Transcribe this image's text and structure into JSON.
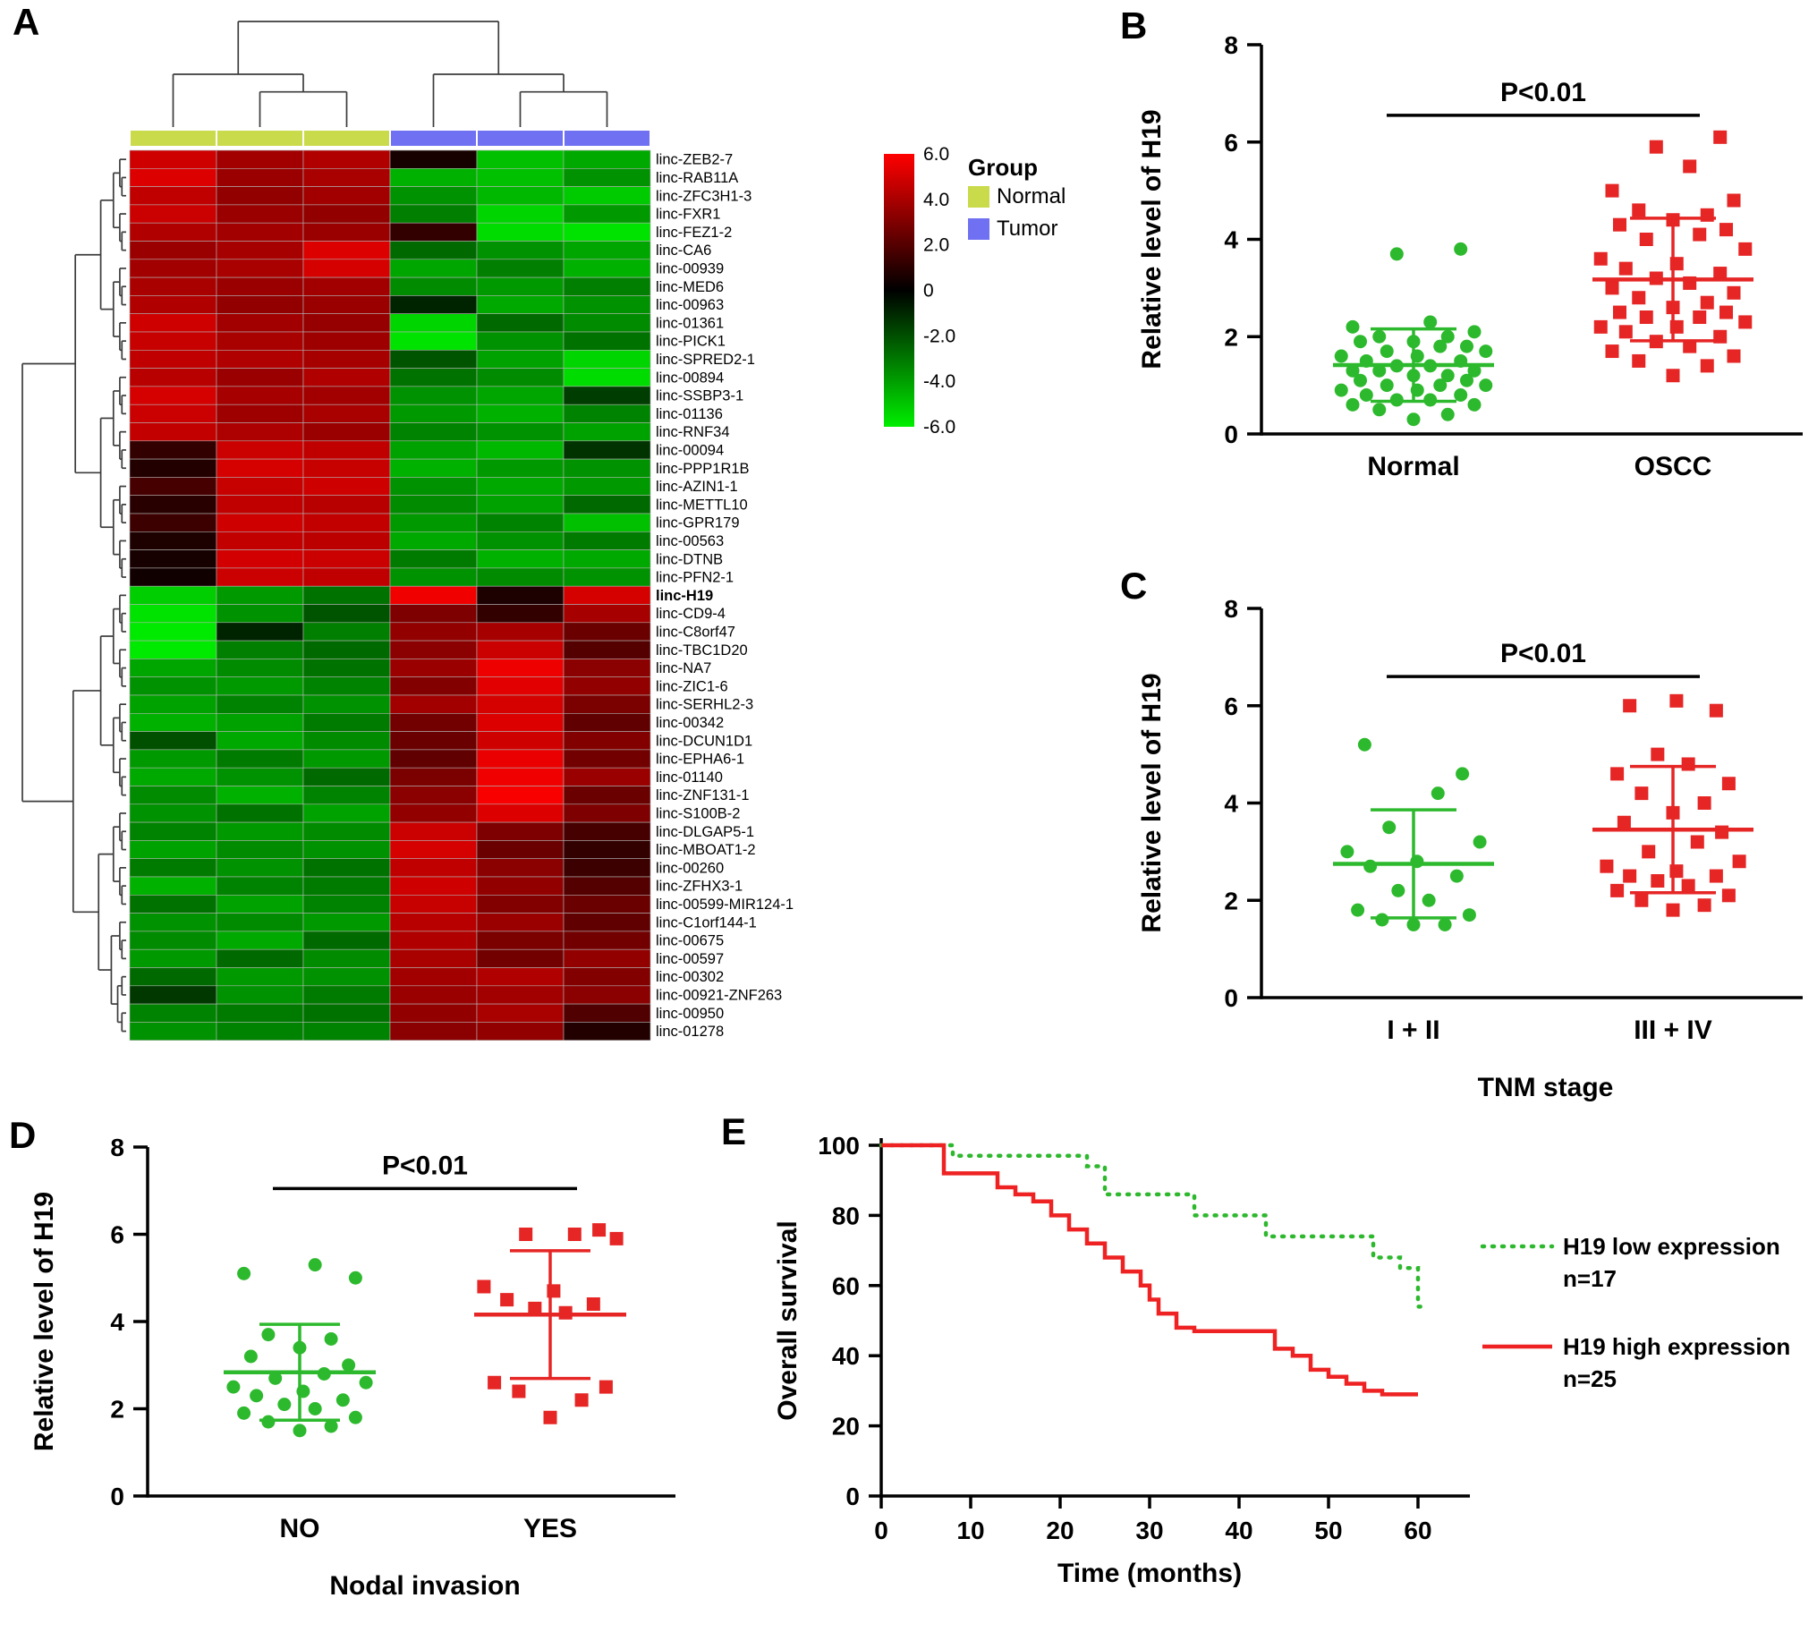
{
  "panels": {
    "a": {
      "label": "A"
    },
    "b": {
      "label": "B"
    },
    "c": {
      "label": "C"
    },
    "d": {
      "label": "D"
    },
    "e": {
      "label": "E"
    }
  },
  "chart_data": [
    {
      "id": "heatmap_a",
      "type": "heatmap",
      "column_groups": [
        "Normal",
        "Normal",
        "Normal",
        "Tumor",
        "Tumor",
        "Tumor"
      ],
      "rows": [
        "linc-ZEB2-7",
        "linc-RAB11A",
        "linc-ZFC3H1-3",
        "linc-FXR1",
        "linc-FEZ1-2",
        "linc-CA6",
        "linc-00939",
        "linc-MED6",
        "linc-00963",
        "linc-01361",
        "linc-PICK1",
        "linc-SPRED2-1",
        "linc-00894",
        "linc-SSBP3-1",
        "linc-01136",
        "linc-RNF34",
        "linc-00094",
        "linc-PPP1R1B",
        "linc-AZIN1-1",
        "linc-METTL10",
        "linc-GPR179",
        "linc-00563",
        "linc-DTNB",
        "linc-PFN2-1",
        "linc-H19",
        "linc-CD9-4",
        "linc-C8orf47",
        "linc-TBC1D20",
        "linc-NA7",
        "linc-ZIC1-6",
        "linc-SERHL2-3",
        "linc-00342",
        "linc-DCUN1D1",
        "linc-EPHA6-1",
        "linc-01140",
        "linc-ZNF131-1",
        "linc-S100B-2",
        "linc-DLGAP5-1",
        "linc-MBOAT1-2",
        "linc-00260",
        "linc-ZFHX3-1",
        "linc-00599-MIR124-1",
        "linc-C1orf144-1",
        "linc-00675",
        "linc-00597",
        "linc-00302",
        "linc-00921-ZNF263",
        "linc-00950",
        "linc-01278"
      ],
      "bold_row": "linc-H19",
      "values": [
        [
          4.6,
          3.4,
          3.8,
          0.3,
          -4.2,
          -3.6
        ],
        [
          5.0,
          3.2,
          3.6,
          -3.8,
          -4.2,
          -3.0
        ],
        [
          4.2,
          3.0,
          3.4,
          -3.0,
          -4.0,
          -4.5
        ],
        [
          4.5,
          3.2,
          3.0,
          -2.5,
          -4.8,
          -3.2
        ],
        [
          3.8,
          3.4,
          3.2,
          0.8,
          -5.0,
          -5.2
        ],
        [
          3.2,
          3.5,
          5.0,
          -2.0,
          -3.0,
          -3.5
        ],
        [
          3.4,
          3.6,
          4.8,
          -3.5,
          -2.5,
          -3.8
        ],
        [
          3.6,
          3.2,
          3.4,
          -2.8,
          -3.2,
          -2.5
        ],
        [
          3.8,
          3.0,
          3.2,
          -0.5,
          -3.6,
          -3.0
        ],
        [
          4.6,
          3.4,
          3.1,
          -4.8,
          -2.0,
          -2.8
        ],
        [
          4.4,
          3.6,
          3.3,
          -5.2,
          -3.0,
          -2.2
        ],
        [
          4.2,
          3.8,
          3.5,
          -1.5,
          -3.4,
          -4.8
        ],
        [
          4.0,
          3.2,
          3.8,
          -2.2,
          -2.8,
          -5.0
        ],
        [
          4.8,
          3.5,
          3.4,
          -3.0,
          -3.5,
          -1.0
        ],
        [
          4.5,
          3.3,
          3.6,
          -3.2,
          -3.8,
          -2.6
        ],
        [
          4.3,
          3.7,
          3.2,
          -2.6,
          -3.0,
          -3.4
        ],
        [
          0.8,
          4.5,
          4.2,
          -3.4,
          -4.0,
          -0.8
        ],
        [
          0.5,
          4.8,
          4.4,
          -3.8,
          -3.2,
          -3.0
        ],
        [
          1.2,
          4.4,
          4.6,
          -3.0,
          -3.6,
          -3.2
        ],
        [
          0.6,
          4.2,
          4.0,
          -2.8,
          -3.4,
          -2.0
        ],
        [
          1.0,
          4.6,
          4.3,
          -3.2,
          -2.6,
          -4.2
        ],
        [
          0.4,
          4.3,
          4.1,
          -3.6,
          -3.0,
          -2.4
        ],
        [
          0.3,
          4.7,
          4.5,
          -2.4,
          -3.8,
          -3.6
        ],
        [
          0.2,
          4.5,
          4.2,
          -3.0,
          -2.8,
          -3.0
        ],
        [
          -4.6,
          -3.2,
          -2.2,
          5.6,
          0.4,
          4.8
        ],
        [
          -5.2,
          -3.0,
          -1.5,
          2.5,
          0.8,
          3.5
        ],
        [
          -5.4,
          -0.5,
          -2.5,
          3.0,
          3.5,
          2.0
        ],
        [
          -5.4,
          -2.5,
          -2.0,
          2.8,
          4.5,
          1.5
        ],
        [
          -3.5,
          -2.8,
          -2.2,
          3.2,
          5.5,
          2.8
        ],
        [
          -3.0,
          -3.2,
          -2.6,
          2.6,
          5.2,
          3.0
        ],
        [
          -3.4,
          -2.6,
          -3.0,
          3.4,
          4.8,
          2.4
        ],
        [
          -3.8,
          -3.4,
          -2.4,
          2.2,
          5.0,
          1.8
        ],
        [
          -1.4,
          -3.6,
          -2.8,
          2.0,
          4.6,
          2.6
        ],
        [
          -3.2,
          -2.4,
          -3.2,
          1.8,
          5.4,
          2.2
        ],
        [
          -3.6,
          -3.0,
          -2.0,
          2.4,
          5.6,
          3.2
        ],
        [
          -2.8,
          -3.8,
          -2.6,
          2.8,
          5.8,
          2.0
        ],
        [
          -3.0,
          -2.2,
          -3.4,
          3.0,
          5.0,
          2.5
        ],
        [
          -2.6,
          -3.2,
          -2.8,
          4.5,
          2.5,
          1.2
        ],
        [
          -3.4,
          -2.8,
          -3.0,
          4.8,
          2.0,
          0.8
        ],
        [
          -2.4,
          -3.0,
          -2.2,
          4.2,
          2.8,
          1.0
        ],
        [
          -3.8,
          -2.6,
          -2.4,
          4.6,
          3.0,
          1.5
        ],
        [
          -2.2,
          -3.4,
          -2.6,
          4.4,
          2.6,
          2.0
        ],
        [
          -3.0,
          -2.8,
          -3.2,
          4.0,
          3.2,
          1.8
        ],
        [
          -2.8,
          -3.6,
          -2.0,
          3.8,
          2.4,
          2.2
        ],
        [
          -3.2,
          -2.0,
          -2.8,
          3.6,
          2.2,
          3.0
        ],
        [
          -2.0,
          -3.2,
          -3.0,
          3.4,
          3.8,
          2.6
        ],
        [
          -0.9,
          -3.0,
          -2.4,
          3.2,
          3.4,
          2.8
        ],
        [
          -2.6,
          -2.4,
          -2.2,
          3.0,
          3.6,
          1.4
        ],
        [
          -3.0,
          -2.6,
          -2.6,
          2.8,
          3.0,
          0.5
        ]
      ],
      "colorscale": {
        "min": -6,
        "max": 6,
        "ticks": [
          "6.0",
          "4.0",
          "2.0",
          "0",
          "-2.0",
          "-4.0",
          "-6.0"
        ],
        "low": "#00ee00",
        "mid": "#000000",
        "high": "#ff0000"
      },
      "legend": {
        "title": "Group",
        "items": [
          {
            "label": "Normal",
            "color": "#c9da4a"
          },
          {
            "label": "Tumor",
            "color": "#7070f2"
          }
        ]
      }
    },
    {
      "id": "scatter_b",
      "type": "scatter",
      "ylabel": "Relative level of H19",
      "ylim": [
        0,
        8
      ],
      "yticks": [
        0,
        2,
        4,
        6,
        8
      ],
      "p_label": "P<0.01",
      "p_line_y": 6.55,
      "groups": [
        {
          "label": "Normal",
          "color": "#2db92d",
          "marker": "circle",
          "values": [
            0.3,
            0.4,
            0.5,
            0.6,
            0.6,
            0.7,
            0.7,
            0.8,
            0.8,
            0.9,
            0.9,
            1.0,
            1.0,
            1.0,
            1.1,
            1.1,
            1.2,
            1.2,
            1.3,
            1.3,
            1.3,
            1.4,
            1.4,
            1.5,
            1.5,
            1.6,
            1.6,
            1.7,
            1.7,
            1.8,
            1.8,
            1.9,
            1.9,
            2.0,
            2.0,
            2.1,
            2.2,
            2.3,
            3.7,
            3.8
          ]
        },
        {
          "label": "OSCC",
          "color": "#e62525",
          "marker": "square",
          "values": [
            1.2,
            1.4,
            1.5,
            1.6,
            1.7,
            1.8,
            1.9,
            2.0,
            2.1,
            2.2,
            2.2,
            2.3,
            2.4,
            2.4,
            2.5,
            2.5,
            2.6,
            2.7,
            2.8,
            2.9,
            3.0,
            3.1,
            3.2,
            3.3,
            3.4,
            3.5,
            3.6,
            3.8,
            4.0,
            4.1,
            4.2,
            4.3,
            4.4,
            4.5,
            4.6,
            4.8,
            5.0,
            5.5,
            5.9,
            6.1
          ]
        }
      ]
    },
    {
      "id": "scatter_c",
      "type": "scatter",
      "ylabel": "Relative level of H19",
      "xlabel": "TNM stage",
      "ylim": [
        0,
        8
      ],
      "yticks": [
        0,
        2,
        4,
        6,
        8
      ],
      "p_label": "P<0.01",
      "p_line_y": 6.6,
      "groups": [
        {
          "label": "I + II",
          "color": "#2db92d",
          "marker": "circle",
          "values": [
            1.5,
            1.5,
            1.6,
            1.7,
            1.8,
            2.0,
            2.2,
            2.5,
            2.7,
            2.8,
            3.0,
            3.2,
            3.5,
            4.2,
            4.6,
            5.2
          ]
        },
        {
          "label": "III + IV",
          "color": "#e62525",
          "marker": "square",
          "values": [
            1.8,
            1.9,
            2.0,
            2.1,
            2.2,
            2.3,
            2.4,
            2.5,
            2.5,
            2.6,
            2.7,
            2.8,
            3.0,
            3.2,
            3.4,
            3.6,
            3.8,
            4.0,
            4.2,
            4.4,
            4.6,
            4.8,
            5.0,
            5.9,
            6.0,
            6.1
          ]
        }
      ]
    },
    {
      "id": "scatter_d",
      "type": "scatter",
      "ylabel": "Relative level of H19",
      "xlabel": "Nodal invasion",
      "ylim": [
        0,
        8
      ],
      "yticks": [
        0,
        2,
        4,
        6,
        8
      ],
      "p_label": "P<0.01",
      "p_line_y": 7.05,
      "groups": [
        {
          "label": "NO",
          "color": "#2db92d",
          "marker": "circle",
          "values": [
            1.5,
            1.6,
            1.7,
            1.8,
            1.9,
            2.0,
            2.1,
            2.2,
            2.3,
            2.4,
            2.5,
            2.6,
            2.7,
            2.8,
            3.0,
            3.2,
            3.4,
            3.6,
            3.7,
            5.0,
            5.1,
            5.3
          ]
        },
        {
          "label": "YES",
          "color": "#e62525",
          "marker": "square",
          "values": [
            1.8,
            2.2,
            2.4,
            2.5,
            2.6,
            4.2,
            4.3,
            4.4,
            4.5,
            4.7,
            4.8,
            5.9,
            6.0,
            6.0,
            6.1
          ]
        }
      ]
    },
    {
      "id": "km_e",
      "type": "line",
      "ylabel": "Overall survival",
      "xlabel": "Time (months)",
      "xlim": [
        0,
        65
      ],
      "xticks": [
        0,
        10,
        20,
        30,
        40,
        50,
        60
      ],
      "ylim": [
        0,
        100
      ],
      "yticks": [
        0,
        20,
        40,
        60,
        80,
        100
      ],
      "series": [
        {
          "name": "H19 low expression",
          "n_label": "n=17",
          "color": "#2eb82e",
          "style": "dotted",
          "points": [
            [
              0,
              100
            ],
            [
              8,
              97
            ],
            [
              23,
              94
            ],
            [
              25,
              86
            ],
            [
              35,
              80
            ],
            [
              43,
              74
            ],
            [
              55,
              68
            ],
            [
              58,
              65
            ],
            [
              60,
              54
            ],
            [
              61,
              54
            ]
          ]
        },
        {
          "name": "H19 high expression",
          "n_label": "n=25",
          "color": "#ee2222",
          "style": "solid",
          "points": [
            [
              0,
              100
            ],
            [
              7,
              92
            ],
            [
              13,
              88
            ],
            [
              15,
              86
            ],
            [
              17,
              84
            ],
            [
              19,
              80
            ],
            [
              21,
              76
            ],
            [
              23,
              72
            ],
            [
              25,
              68
            ],
            [
              27,
              64
            ],
            [
              29,
              60
            ],
            [
              30,
              56
            ],
            [
              31,
              52
            ],
            [
              33,
              48
            ],
            [
              35,
              47
            ],
            [
              44,
              42
            ],
            [
              46,
              40
            ],
            [
              48,
              36
            ],
            [
              50,
              34
            ],
            [
              52,
              32
            ],
            [
              54,
              30
            ],
            [
              56,
              29
            ],
            [
              60,
              29
            ]
          ]
        }
      ]
    }
  ]
}
